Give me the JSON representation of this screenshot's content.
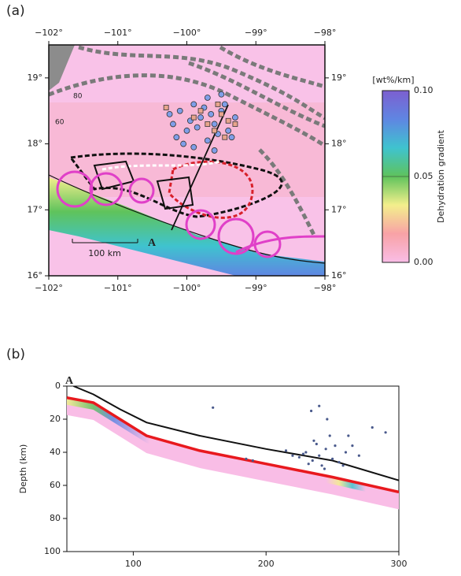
{
  "chart_data": [
    {
      "type": "map",
      "panel": "(a)",
      "xlim": [
        -102,
        -98
      ],
      "ylim": [
        16,
        19.5
      ],
      "xticks": [
        {
          "value": -102,
          "label": "−102°"
        },
        {
          "value": -101,
          "label": "−101°"
        },
        {
          "value": -100,
          "label": "−100°"
        },
        {
          "value": -99,
          "label": "−99°"
        },
        {
          "value": -98,
          "label": "−98°"
        }
      ],
      "yticks": [
        {
          "value": 16,
          "label": "16°"
        },
        {
          "value": 17,
          "label": "17°"
        },
        {
          "value": 18,
          "label": "18°"
        },
        {
          "value": 19,
          "label": "19°"
        }
      ],
      "scale_bar": "100 km",
      "profile_label": "A",
      "contour_labels": [
        "80",
        "60"
      ],
      "colorbar": {
        "unit": "[wt%/km]",
        "title": "Dehydration gradient",
        "lim": [
          0,
          0.1
        ],
        "ticks": [
          {
            "value": 0,
            "label": "0.00"
          },
          {
            "value": 0.05,
            "label": "0.05"
          },
          {
            "value": 0.1,
            "label": "0.10"
          }
        ],
        "colors": [
          "#f9bde6",
          "#f8a2a6",
          "#f3ef8c",
          "#5fc35c",
          "#3fc3cf",
          "#5f86e2",
          "#7c5fd0"
        ]
      },
      "series": [
        {
          "marker": "circle",
          "color": "#7f9ee8",
          "x": [
            -100.2,
            -100.1,
            -100.0,
            -99.9,
            -99.8,
            -99.7,
            -99.6,
            -99.5,
            -99.4,
            -99.3,
            -100.15,
            -99.95,
            -99.75,
            -99.55,
            -99.45,
            -99.85,
            -99.65,
            -100.05,
            -99.35,
            -99.7,
            -100.25,
            -99.9,
            -99.6,
            -99.5
          ],
          "y": [
            18.3,
            18.5,
            18.2,
            18.6,
            18.4,
            18.7,
            18.3,
            18.5,
            18.2,
            18.4,
            18.1,
            18.35,
            18.55,
            18.15,
            18.6,
            18.25,
            18.45,
            18.0,
            18.1,
            18.05,
            18.45,
            17.95,
            17.9,
            18.75
          ]
        },
        {
          "marker": "square",
          "color": "#e8a58c",
          "x": [
            -99.9,
            -99.7,
            -99.5,
            -99.6,
            -99.4,
            -99.8,
            -99.3,
            -100.3,
            -99.55,
            -99.45
          ],
          "y": [
            18.4,
            18.3,
            18.45,
            18.2,
            18.35,
            18.5,
            18.3,
            18.55,
            18.6,
            18.1
          ]
        }
      ]
    },
    {
      "type": "section",
      "panel": "(b)",
      "profile_label": "A",
      "y_label": "Depth (km)",
      "xlim": [
        50,
        300
      ],
      "ylim": [
        100,
        0
      ],
      "xticks": [
        100,
        200,
        300
      ],
      "yticks": [
        0,
        20,
        40,
        60,
        80,
        100
      ],
      "series": [
        {
          "style": "band",
          "color": "#f9bde6",
          "x": [
            50,
            70,
            90,
            110,
            150,
            200,
            250,
            300
          ],
          "y": [
            7,
            10,
            20,
            30,
            39,
            47,
            55,
            64
          ]
        },
        {
          "style": "line",
          "color": "#111111",
          "x": [
            55,
            70,
            90,
            110,
            150,
            200,
            250,
            300
          ],
          "y": [
            0,
            5,
            14,
            22,
            30,
            38,
            45,
            57
          ]
        },
        {
          "style": "line",
          "color": "#e8191e",
          "x": [
            50,
            70,
            90,
            110,
            150,
            200,
            250,
            300
          ],
          "y": [
            7,
            10,
            20,
            30,
            39,
            47,
            55,
            64
          ]
        },
        {
          "style": "points",
          "color": "#4a5a8c",
          "x": [
            230,
            240,
            235,
            245,
            250,
            225,
            260,
            255,
            238,
            242,
            228,
            248,
            265,
            270,
            215,
            280,
            290,
            190,
            185,
            160,
            232,
            244,
            236,
            252,
            258,
            220,
            262,
            246,
            234,
            240
          ],
          "y": [
            40,
            42,
            45,
            38,
            44,
            43,
            40,
            46,
            35,
            48,
            41,
            30,
            36,
            42,
            39,
            25,
            28,
            45,
            44,
            13,
            47,
            50,
            33,
            36,
            48,
            42,
            30,
            20,
            15,
            12
          ]
        }
      ]
    }
  ]
}
